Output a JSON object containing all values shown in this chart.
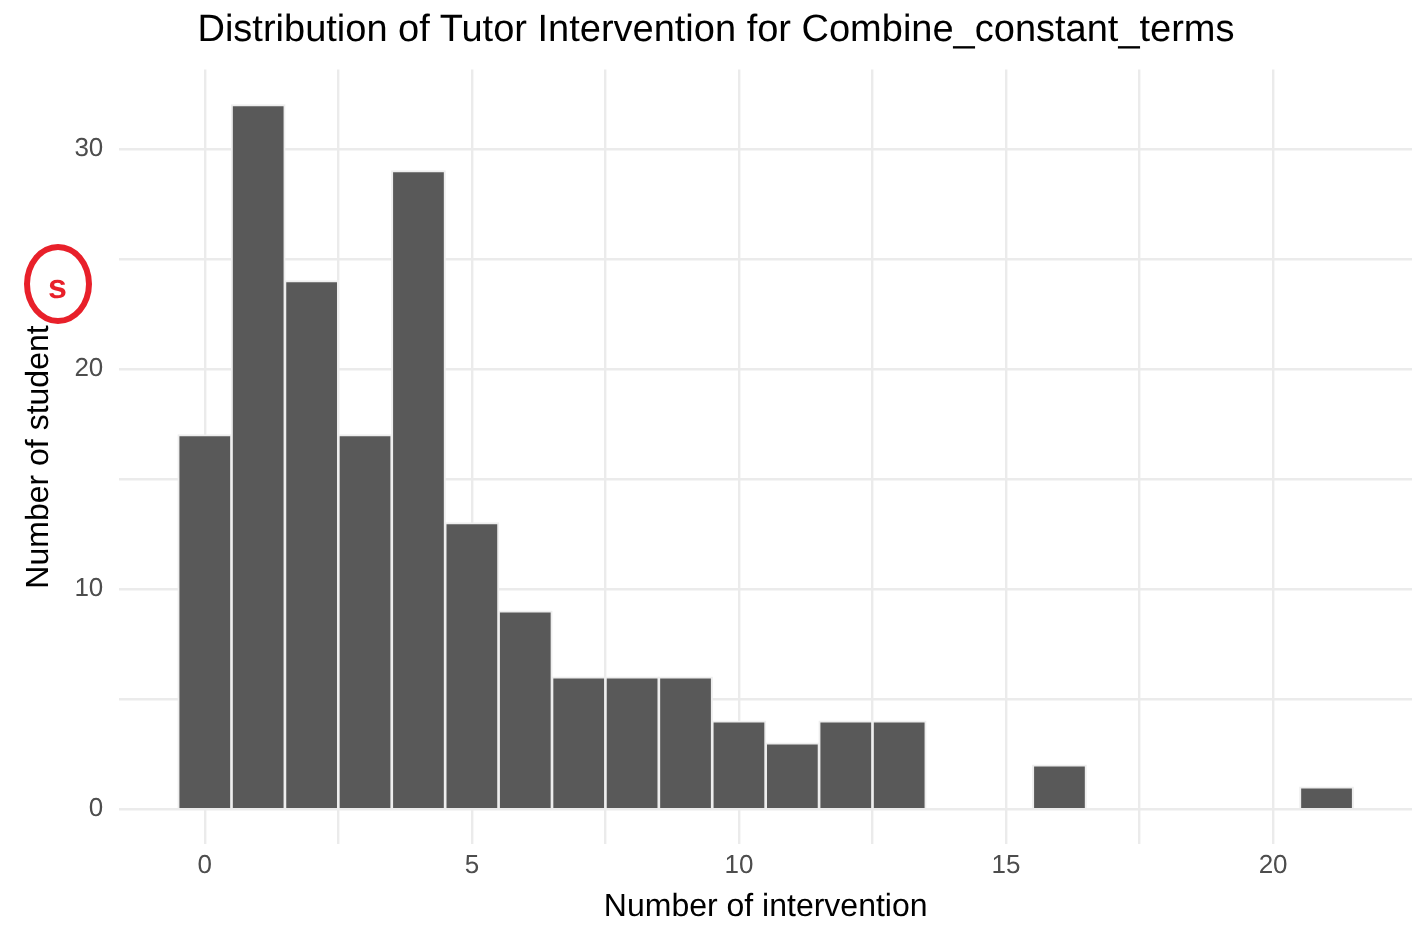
{
  "chart_data": {
    "type": "histogram",
    "title": "Distribution of Tutor Intervention for Combine_constant_terms",
    "xlabel": "Number of intervention",
    "ylabel": "Number of student",
    "annotations": [
      "s"
    ],
    "bins": [
      -0.5,
      0.5,
      1.5,
      2.5,
      3.5,
      4.5,
      5.5,
      6.5,
      7.5,
      8.5,
      9.5,
      10.5,
      11.5,
      12.5,
      13.5,
      14.5,
      15.5,
      16.5,
      17.5,
      18.5,
      19.5,
      20.5,
      21.5
    ],
    "values": [
      17,
      32,
      24,
      17,
      29,
      13,
      9,
      6,
      6,
      6,
      4,
      3,
      4,
      4,
      0,
      0,
      2,
      0,
      0,
      0,
      0,
      1
    ],
    "color": "#595959",
    "xlim": [
      -1.6,
      22.6
    ],
    "xticks": [
      0,
      {
        "value": 2.5,
        "label": null
      },
      5,
      {
        "value": 7.5,
        "label": null
      },
      10,
      {
        "value": 12.5,
        "label": null
      },
      15,
      {
        "value": 17.5,
        "label": null
      },
      20
    ],
    "ylim": [
      -1.6,
      33.6
    ],
    "yticks": [
      0,
      {
        "value": 5,
        "label": null
      },
      10,
      {
        "value": 15,
        "label": null
      },
      20,
      {
        "value": 25,
        "label": null
      },
      30
    ],
    "grid": true,
    "legend": false
  }
}
